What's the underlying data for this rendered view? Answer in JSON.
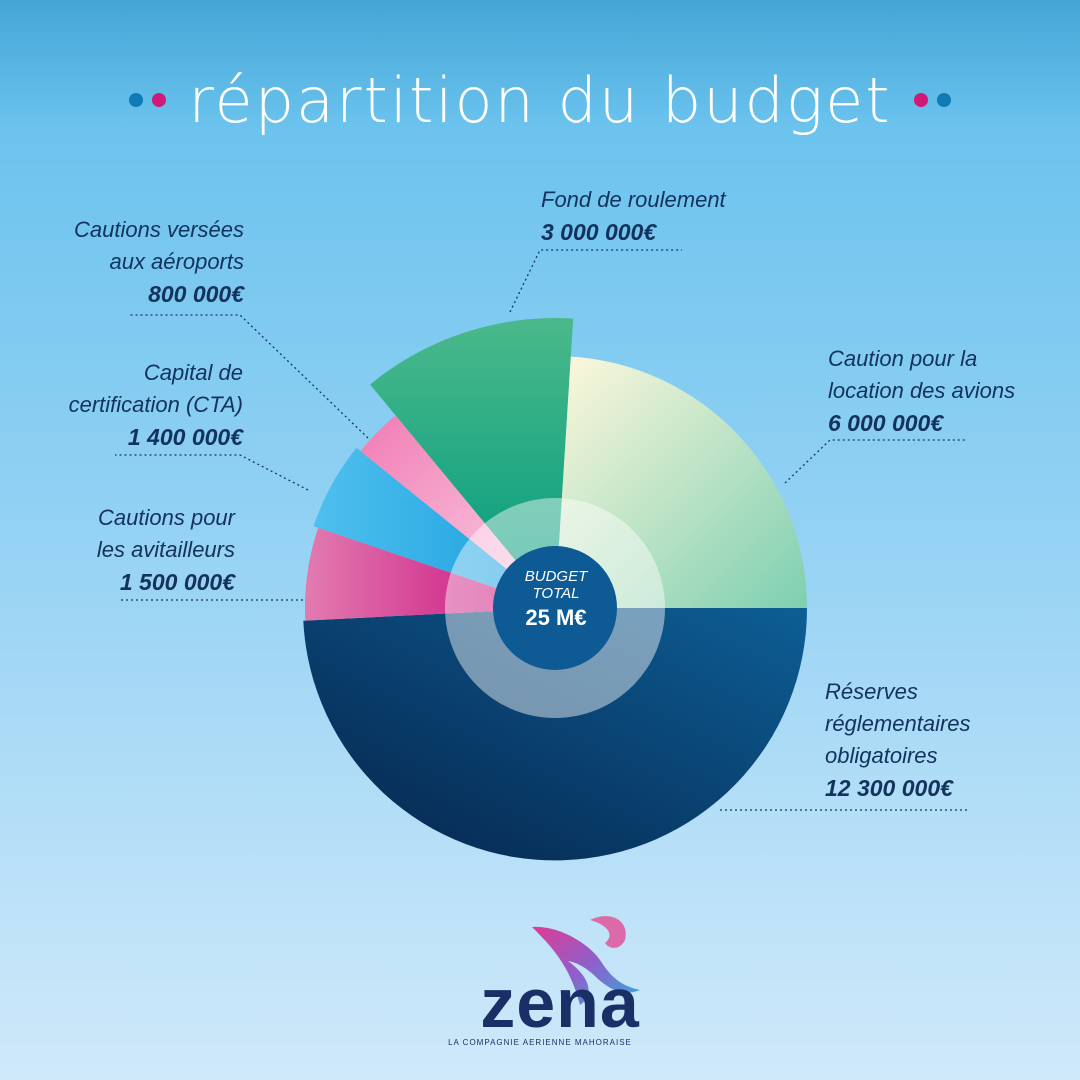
{
  "title": "répartition du budget",
  "colors": {
    "dot_blue": "#0e7bb6",
    "dot_pink": "#d01a7a"
  },
  "center": {
    "label": "BUDGET\nTOTAL",
    "value": "25 M€"
  },
  "chart_data": {
    "type": "pie",
    "title": "répartition du budget",
    "total": "25 M€",
    "series": [
      {
        "name": "Réserves réglementaires obligatoires",
        "value": 12300000,
        "label": "12 300 000€",
        "color": "#0a3a6b"
      },
      {
        "name": "Cautions pour les avitailleurs",
        "value": 1500000,
        "label": "1 500 000€",
        "color": "#cd1f7d"
      },
      {
        "name": "Capital de certification (CTA)",
        "value": 1400000,
        "label": "1 400 000€",
        "color": "#2aa8e0"
      },
      {
        "name": "Cautions versées aux aéroports",
        "value": 800000,
        "label": "800 000€",
        "color": "#f19bc3"
      },
      {
        "name": "Fond de roulement",
        "value": 3000000,
        "label": "3 000 000€",
        "color": "#21a57a"
      },
      {
        "name": "Caution pour la location des avions",
        "value": 6000000,
        "label": "6 000 000€",
        "color": "#c9ecd6"
      }
    ]
  },
  "labels": {
    "reserves": {
      "lines": [
        "Réserves",
        "réglementaires",
        "obligatoires"
      ],
      "value": "12 300 000€"
    },
    "avitailleurs": {
      "lines": [
        "Cautions pour",
        "les avitailleurs"
      ],
      "value": "1 500 000€"
    },
    "cta": {
      "lines": [
        "Capital de",
        "certification (CTA)"
      ],
      "value": "1 400 000€"
    },
    "aeroports": {
      "lines": [
        "Cautions versées",
        "aux aéroports"
      ],
      "value": "800 000€"
    },
    "fond": {
      "lines": [
        "Fond de roulement"
      ],
      "value": "3 000 000€"
    },
    "location": {
      "lines": [
        "Caution pour la",
        "location des avions"
      ],
      "value": "6 000 000€"
    }
  },
  "logo": {
    "word": "zena",
    "tagline": "LA COMPAGNIE AERIENNE MAHORAISE"
  }
}
